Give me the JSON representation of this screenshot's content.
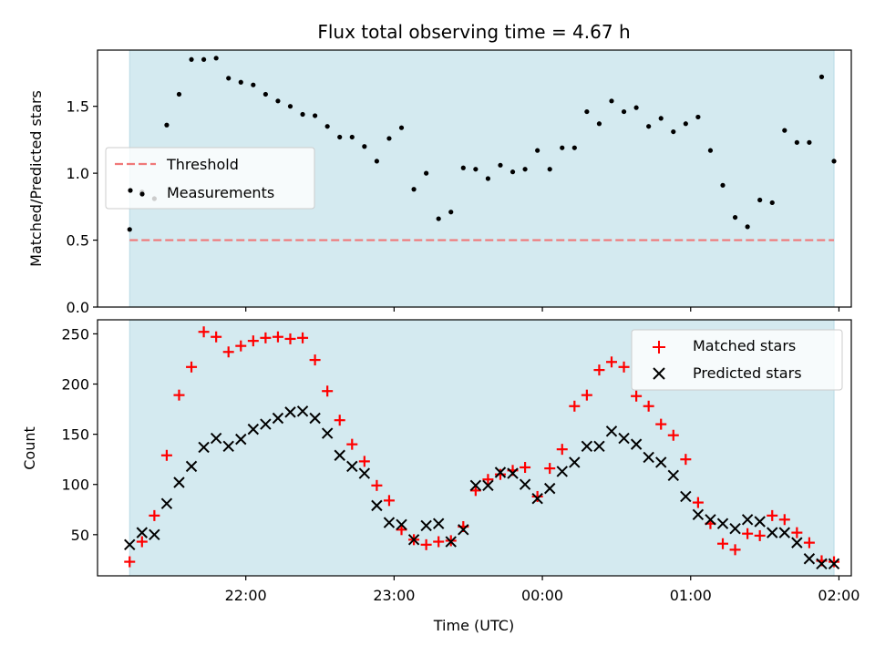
{
  "chart_data": [
    {
      "type": "scatter",
      "title": "Flux total observing time = 4.67 h",
      "ylabel": "Matched/Predicted stars",
      "xlabel": "",
      "ylim": [
        0,
        1.92
      ],
      "yticks": [
        "0.0",
        "0.5",
        "1.0",
        "1.5"
      ],
      "legend_position": "center-left",
      "threshold": {
        "name": "Threshold",
        "value": 0.5,
        "color": "#f07878"
      },
      "series": [
        {
          "name": "Measurements",
          "color": "#000000",
          "x": [
            "21:13",
            "21:18",
            "21:23",
            "21:28",
            "21:33",
            "21:38",
            "21:43",
            "21:48",
            "21:53",
            "21:58",
            "22:03",
            "22:08",
            "22:13",
            "22:18",
            "22:23",
            "22:28",
            "22:33",
            "22:38",
            "22:43",
            "22:48",
            "22:53",
            "22:58",
            "23:03",
            "23:08",
            "23:13",
            "23:18",
            "23:23",
            "23:28",
            "23:33",
            "23:38",
            "23:43",
            "23:48",
            "23:53",
            "23:58",
            "00:03",
            "00:08",
            "00:13",
            "00:18",
            "00:23",
            "00:28",
            "00:33",
            "00:38",
            "00:43",
            "00:48",
            "00:53",
            "00:58",
            "01:03",
            "01:08",
            "01:13",
            "01:18",
            "01:23",
            "01:28",
            "01:33",
            "01:38",
            "01:43",
            "01:48",
            "01:53",
            "01:58"
          ],
          "y": [
            0.58,
            0.86,
            0.81,
            1.36,
            1.59,
            1.85,
            1.85,
            1.86,
            1.71,
            1.68,
            1.66,
            1.59,
            1.54,
            1.5,
            1.44,
            1.43,
            1.35,
            1.27,
            1.27,
            1.2,
            1.09,
            1.26,
            1.34,
            0.88,
            1.0,
            0.66,
            0.71,
            1.04,
            1.03,
            0.96,
            1.06,
            1.01,
            1.03,
            1.17,
            1.03,
            1.19,
            1.19,
            1.46,
            1.37,
            1.54,
            1.46,
            1.49,
            1.35,
            1.41,
            1.31,
            1.37,
            1.42,
            1.17,
            0.91,
            0.67,
            0.6,
            0.8,
            0.78,
            1.32,
            1.23,
            1.23,
            1.72,
            1.09
          ]
        }
      ]
    },
    {
      "type": "scatter",
      "xlabel": "Time (UTC)",
      "ylabel": "Count",
      "xticks": [
        "22:00",
        "23:00",
        "00:00",
        "01:00",
        "02:00"
      ],
      "yticks": [
        "50",
        "100",
        "150",
        "200",
        "250"
      ],
      "xlim": [
        "21:00",
        "02:05"
      ],
      "ylim": [
        9,
        264
      ],
      "legend_position": "upper right",
      "observing_window": {
        "start": "21:13",
        "end": "01:58",
        "color": "#d4eaf0"
      },
      "series": [
        {
          "name": "Matched stars",
          "marker": "+",
          "color": "#ff0000",
          "x": [
            "21:13",
            "21:18",
            "21:23",
            "21:28",
            "21:33",
            "21:38",
            "21:43",
            "21:48",
            "21:53",
            "21:58",
            "22:03",
            "22:08",
            "22:13",
            "22:18",
            "22:23",
            "22:28",
            "22:33",
            "22:38",
            "22:43",
            "22:48",
            "22:53",
            "22:58",
            "23:03",
            "23:08",
            "23:13",
            "23:18",
            "23:23",
            "23:28",
            "23:33",
            "23:38",
            "23:43",
            "23:48",
            "23:53",
            "23:58",
            "00:03",
            "00:08",
            "00:13",
            "00:18",
            "00:23",
            "00:28",
            "00:33",
            "00:38",
            "00:43",
            "00:48",
            "00:53",
            "00:58",
            "01:03",
            "01:08",
            "01:13",
            "01:18",
            "01:23",
            "01:28",
            "01:33",
            "01:38",
            "01:43",
            "01:48",
            "01:53",
            "01:58"
          ],
          "y": [
            23,
            43,
            69,
            129,
            189,
            217,
            252,
            247,
            232,
            238,
            243,
            246,
            247,
            245,
            246,
            224,
            193,
            164,
            140,
            123,
            99,
            84,
            55,
            45,
            40,
            43,
            44,
            58,
            94,
            105,
            110,
            114,
            117,
            88,
            116,
            135,
            178,
            189,
            214,
            222,
            217,
            188,
            178,
            160,
            149,
            125,
            82,
            61,
            41,
            35,
            51,
            49,
            69,
            65,
            52,
            42,
            24,
            23
          ],
          "__comment": ""
        },
        {
          "name": "Predicted stars",
          "marker": "x",
          "color": "#000000",
          "x": [
            "21:13",
            "21:18",
            "21:23",
            "21:28",
            "21:33",
            "21:38",
            "21:43",
            "21:48",
            "21:53",
            "21:58",
            "22:03",
            "22:08",
            "22:13",
            "22:18",
            "22:23",
            "22:28",
            "22:33",
            "22:38",
            "22:43",
            "22:48",
            "22:53",
            "22:58",
            "23:03",
            "23:08",
            "23:13",
            "23:18",
            "23:23",
            "23:28",
            "23:33",
            "23:38",
            "23:43",
            "23:48",
            "23:53",
            "23:58",
            "00:03",
            "00:08",
            "00:13",
            "00:18",
            "00:23",
            "00:28",
            "00:33",
            "00:38",
            "00:43",
            "00:48",
            "00:53",
            "00:58",
            "01:03",
            "01:08",
            "01:13",
            "01:18",
            "01:23",
            "01:28",
            "01:33",
            "01:38",
            "01:43",
            "01:48",
            "01:53",
            "01:58"
          ],
          "y": [
            40,
            52,
            50,
            81,
            102,
            118,
            137,
            146,
            138,
            145,
            155,
            160,
            166,
            172,
            173,
            166,
            151,
            129,
            118,
            111,
            79,
            62,
            60,
            45,
            59,
            61,
            43,
            55,
            99,
            99,
            112,
            111,
            100,
            86,
            96,
            113,
            122,
            138,
            138,
            153,
            146,
            140,
            127,
            122,
            109,
            88,
            70,
            65,
            61,
            56,
            65,
            63,
            52,
            52,
            42,
            26,
            21,
            21
          ]
        }
      ]
    }
  ]
}
